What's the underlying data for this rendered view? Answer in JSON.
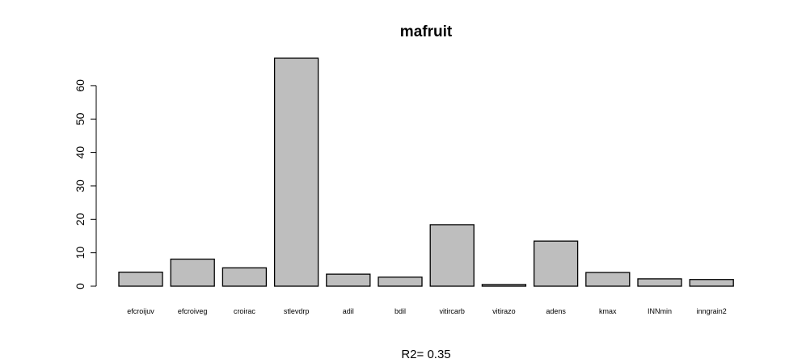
{
  "chart_data": {
    "type": "bar",
    "title": "mafruit",
    "subtitle": "R2= 0.35",
    "xlabel": "",
    "ylabel": "",
    "categories": [
      "efcroijuv",
      "efcroiveg",
      "croirac",
      "stlevdrp",
      "adil",
      "bdil",
      "vitircarb",
      "vitirazo",
      "adens",
      "kmax",
      "INNmin",
      "inngrain2"
    ],
    "values": [
      4.2,
      8.1,
      5.5,
      68.2,
      3.6,
      2.7,
      18.4,
      0.5,
      13.5,
      4.1,
      2.2,
      2.0
    ],
    "yticks": [
      0,
      10,
      20,
      30,
      40,
      50,
      60
    ],
    "ylim": [
      0,
      68.2
    ],
    "grid": false,
    "bar_color": "#bebebe"
  }
}
